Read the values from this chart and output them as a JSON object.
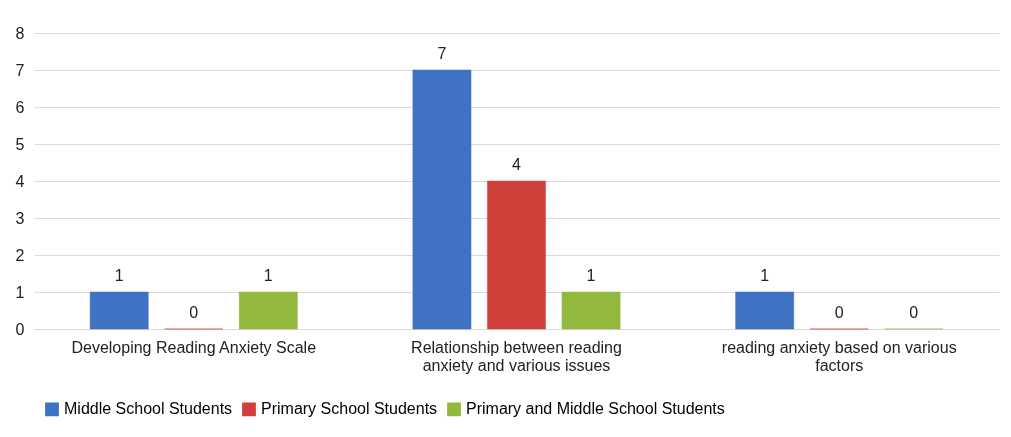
{
  "chart_data": {
    "type": "bar",
    "categories": [
      "Developing Reading Anxiety Scale",
      "Relationship between reading anxiety and various issues",
      "reading anxiety based on various factors"
    ],
    "series": [
      {
        "name": "Middle School Students",
        "color": "#3f72c2",
        "values": [
          1,
          7,
          1
        ]
      },
      {
        "name": "Primary School Students",
        "color": "#d0403a",
        "values": [
          0,
          4,
          0
        ]
      },
      {
        "name": "Primary and Middle School Students",
        "color": "#93b83e",
        "values": [
          1,
          1,
          0
        ]
      }
    ],
    "ylim": [
      0,
      8
    ],
    "yticks": [
      0,
      1,
      2,
      3,
      4,
      5,
      6,
      7,
      8
    ],
    "grid": "y",
    "legend": "bottom",
    "data_labels": true
  }
}
